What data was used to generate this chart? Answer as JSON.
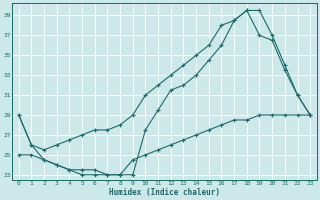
{
  "xlabel": "Humidex (Indice chaleur)",
  "xlim": [
    -0.5,
    23.5
  ],
  "ylim": [
    22.5,
    40.2
  ],
  "yticks": [
    23,
    25,
    27,
    29,
    31,
    33,
    35,
    37,
    39
  ],
  "xticks": [
    0,
    1,
    2,
    3,
    4,
    5,
    6,
    7,
    8,
    9,
    10,
    11,
    12,
    13,
    14,
    15,
    16,
    17,
    18,
    19,
    20,
    21,
    22,
    23
  ],
  "bg_color": "#cce8e8",
  "grid_color": "#ffffff",
  "line_color": "#1a6b6b",
  "line1_x": [
    0,
    1,
    2,
    3,
    4,
    5,
    6,
    7,
    8,
    9,
    10,
    11,
    12,
    13,
    14,
    15,
    16,
    17,
    18,
    19,
    20,
    21,
    22,
    23
  ],
  "line1_y": [
    29,
    26,
    25.5,
    26,
    26.5,
    27,
    27.5,
    27.5,
    28,
    29,
    31,
    32,
    33,
    34,
    35,
    36,
    38,
    38.5,
    39.5,
    39.5,
    37,
    34,
    31,
    29
  ],
  "line2_x": [
    0,
    1,
    2,
    3,
    4,
    5,
    6,
    7,
    8,
    9,
    10,
    11,
    12,
    13,
    14,
    15,
    16,
    17,
    18,
    19,
    20,
    21,
    22,
    23
  ],
  "line2_y": [
    29,
    26,
    24.5,
    24,
    23.5,
    23.5,
    23.5,
    23,
    23,
    23,
    27.5,
    29.5,
    31.5,
    32,
    33,
    34.5,
    36,
    38.5,
    39.5,
    37,
    36.5,
    33.5,
    31,
    29
  ],
  "line3_x": [
    0,
    1,
    2,
    3,
    4,
    5,
    6,
    7,
    8,
    9,
    10,
    11,
    12,
    13,
    14,
    15,
    16,
    17,
    18,
    19,
    20,
    21,
    22,
    23
  ],
  "line3_y": [
    25,
    25,
    24.5,
    24,
    23.5,
    23,
    23,
    23,
    23,
    24.5,
    25,
    25.5,
    26,
    26.5,
    27,
    27.5,
    28,
    28.5,
    28.5,
    29,
    29,
    29,
    29,
    29
  ]
}
